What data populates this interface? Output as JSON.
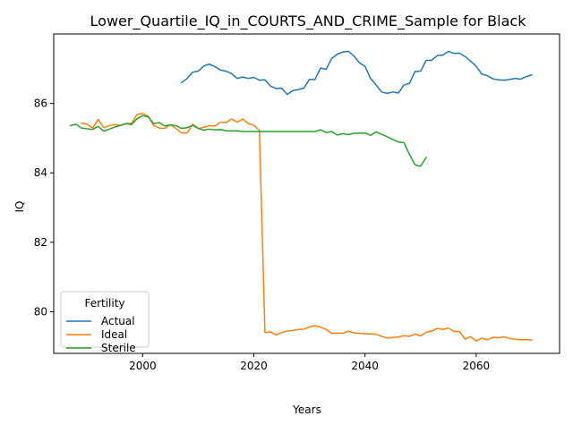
{
  "chart_data": {
    "type": "line",
    "title": "Lower_Quartile_IQ_in_COURTS_AND_CRIME_Sample for Black",
    "xlabel": "Years",
    "ylabel": "IQ",
    "xlim": [
      1984,
      2075
    ],
    "ylim": [
      78.8,
      88.0
    ],
    "xticks": [
      2000,
      2020,
      2040,
      2060
    ],
    "yticks": [
      80,
      82,
      84,
      86
    ],
    "grid": false,
    "legend": {
      "title": "Fertility",
      "placement": "lower-left"
    },
    "series": [
      {
        "name": "Actual",
        "color": "#1f77b4",
        "x": [
          2007,
          2008,
          2009,
          2010,
          2011,
          2012,
          2013,
          2014,
          2015,
          2016,
          2017,
          2018,
          2019,
          2020,
          2021,
          2022,
          2023,
          2024,
          2025,
          2026,
          2027,
          2028,
          2029,
          2030,
          2031,
          2032,
          2033,
          2034,
          2035,
          2036,
          2037,
          2038,
          2039,
          2040,
          2041,
          2042,
          2043,
          2044,
          2045,
          2046,
          2047,
          2048,
          2049,
          2050,
          2051,
          2052,
          2053,
          2054,
          2055,
          2056,
          2057,
          2058,
          2059,
          2060,
          2061,
          2062,
          2063,
          2064,
          2065,
          2066,
          2067,
          2068,
          2069,
          2070
        ],
        "y": [
          86.6,
          86.72,
          86.9,
          86.93,
          87.08,
          87.13,
          87.06,
          86.96,
          86.93,
          86.86,
          86.72,
          86.76,
          86.72,
          86.75,
          86.67,
          86.68,
          86.5,
          86.43,
          86.44,
          86.26,
          86.37,
          86.4,
          86.44,
          86.69,
          86.69,
          87.02,
          86.98,
          87.29,
          87.42,
          87.48,
          87.5,
          87.37,
          87.17,
          87.07,
          86.72,
          86.53,
          86.33,
          86.29,
          86.33,
          86.3,
          86.53,
          86.58,
          86.92,
          86.93,
          87.24,
          87.24,
          87.38,
          87.39,
          87.5,
          87.44,
          87.45,
          87.35,
          87.22,
          87.07,
          86.85,
          86.8,
          86.71,
          86.68,
          86.67,
          86.69,
          86.72,
          86.7,
          86.77,
          86.82
        ]
      },
      {
        "name": "Ideal",
        "color": "#ff7f0e",
        "x": [
          1989,
          1990,
          1991,
          1992,
          1993,
          1994,
          1995,
          1996,
          1997,
          1998,
          1999,
          2000,
          2001,
          2002,
          2003,
          2004,
          2005,
          2006,
          2007,
          2008,
          2009,
          2010,
          2011,
          2012,
          2013,
          2014,
          2015,
          2016,
          2017,
          2018,
          2019,
          2020,
          2021,
          2022,
          2023,
          2024,
          2025,
          2026,
          2027,
          2028,
          2029,
          2030,
          2031,
          2032,
          2033,
          2034,
          2035,
          2036,
          2037,
          2038,
          2039,
          2040,
          2041,
          2042,
          2043,
          2044,
          2045,
          2046,
          2047,
          2048,
          2049,
          2050,
          2051,
          2052,
          2053,
          2054,
          2055,
          2056,
          2057,
          2058,
          2059,
          2060,
          2061,
          2062,
          2063,
          2064,
          2065,
          2066,
          2067,
          2068,
          2069,
          2070
        ],
        "y": [
          85.43,
          85.4,
          85.29,
          85.54,
          85.3,
          85.36,
          85.39,
          85.36,
          85.42,
          85.43,
          85.68,
          85.71,
          85.63,
          85.36,
          85.29,
          85.28,
          85.39,
          85.28,
          85.15,
          85.15,
          85.4,
          85.28,
          85.31,
          85.36,
          85.35,
          85.46,
          85.45,
          85.55,
          85.46,
          85.55,
          85.42,
          85.37,
          85.22,
          79.4,
          79.42,
          79.33,
          79.4,
          79.44,
          79.46,
          79.49,
          79.5,
          79.56,
          79.6,
          79.56,
          79.49,
          79.38,
          79.38,
          79.38,
          79.44,
          79.39,
          79.38,
          79.36,
          79.36,
          79.35,
          79.29,
          79.24,
          79.26,
          79.27,
          79.31,
          79.29,
          79.36,
          79.3,
          79.41,
          79.44,
          79.52,
          79.49,
          79.53,
          79.43,
          79.43,
          79.21,
          79.28,
          79.16,
          79.24,
          79.19,
          79.26,
          79.25,
          79.28,
          79.23,
          79.21,
          79.19,
          79.2,
          79.18
        ]
      },
      {
        "name": "Sterile",
        "color": "#2ca02c",
        "x": [
          1987,
          1988,
          1989,
          1990,
          1991,
          1992,
          1993,
          1994,
          1995,
          1996,
          1997,
          1998,
          1999,
          2000,
          2001,
          2002,
          2003,
          2004,
          2005,
          2006,
          2007,
          2008,
          2009,
          2010,
          2011,
          2012,
          2013,
          2014,
          2015,
          2016,
          2017,
          2018,
          2019,
          2020,
          2021,
          2022,
          2023,
          2024,
          2025,
          2026,
          2027,
          2028,
          2029,
          2030,
          2031,
          2032,
          2033,
          2034,
          2035,
          2036,
          2037,
          2038,
          2039,
          2040,
          2041,
          2042,
          2043,
          2044,
          2045,
          2046,
          2047,
          2048,
          2049,
          2050,
          2051
        ],
        "y": [
          85.36,
          85.4,
          85.29,
          85.27,
          85.25,
          85.34,
          85.2,
          85.26,
          85.32,
          85.37,
          85.42,
          85.39,
          85.56,
          85.65,
          85.61,
          85.42,
          85.45,
          85.35,
          85.38,
          85.36,
          85.28,
          85.3,
          85.37,
          85.28,
          85.23,
          85.26,
          85.24,
          85.25,
          85.21,
          85.21,
          85.21,
          85.19,
          85.19,
          85.19,
          85.19,
          85.19,
          85.19,
          85.19,
          85.19,
          85.19,
          85.19,
          85.19,
          85.19,
          85.19,
          85.19,
          85.24,
          85.16,
          85.19,
          85.09,
          85.13,
          85.1,
          85.14,
          85.14,
          85.15,
          85.08,
          85.18,
          85.11,
          85.04,
          84.96,
          84.89,
          84.87,
          84.53,
          84.23,
          84.19,
          84.44
        ]
      }
    ]
  }
}
